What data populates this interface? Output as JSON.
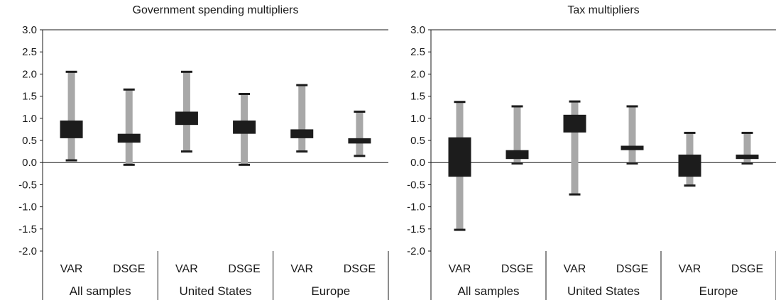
{
  "chart_data": [
    {
      "type": "range_box",
      "title": "Government spending multipliers",
      "ylim": [
        -2.0,
        3.0
      ],
      "yticks": [
        "3.0",
        "2.5",
        "2.0",
        "1.5",
        "1.0",
        "0.5",
        "0.0",
        "-0.5",
        "-1.0",
        "-1.5",
        "-2.0"
      ],
      "categories": [
        "VAR",
        "DSGE",
        "VAR",
        "DSGE",
        "VAR",
        "DSGE"
      ],
      "groups": [
        "All samples",
        "United States",
        "Europe"
      ],
      "whisker_low": [
        0.05,
        -0.05,
        0.25,
        -0.05,
        0.25,
        0.15
      ],
      "box_low": [
        0.55,
        0.45,
        0.85,
        0.65,
        0.55,
        0.43
      ],
      "box_high": [
        0.95,
        0.65,
        1.15,
        0.95,
        0.75,
        0.55
      ],
      "whisker_high": [
        2.05,
        1.65,
        2.05,
        1.55,
        1.75,
        1.15
      ],
      "grid": false,
      "colors": {
        "whisker": "#a8a8a8",
        "box": "#1c1c1c"
      }
    },
    {
      "type": "range_box",
      "title": "Tax multipliers",
      "ylim": [
        -2.0,
        3.0
      ],
      "yticks": [
        "3.0",
        "2.5",
        "2.0",
        "1.5",
        "1.0",
        "0.5",
        "0.0",
        "-0.5",
        "-1.0",
        "-1.5",
        "-2.0"
      ],
      "categories": [
        "VAR",
        "DSGE",
        "VAR",
        "DSGE",
        "VAR",
        "DSGE"
      ],
      "groups": [
        "All samples",
        "United States",
        "Europe"
      ],
      "whisker_low": [
        -1.52,
        -0.02,
        -0.72,
        -0.02,
        -0.52,
        -0.02
      ],
      "box_low": [
        -0.32,
        0.08,
        0.68,
        0.28,
        -0.32,
        0.08
      ],
      "box_high": [
        0.57,
        0.28,
        1.08,
        0.38,
        0.18,
        0.18
      ],
      "whisker_high": [
        1.37,
        1.27,
        1.38,
        1.27,
        0.67,
        0.67
      ],
      "grid": false,
      "colors": {
        "whisker": "#a8a8a8",
        "box": "#1c1c1c"
      }
    }
  ]
}
